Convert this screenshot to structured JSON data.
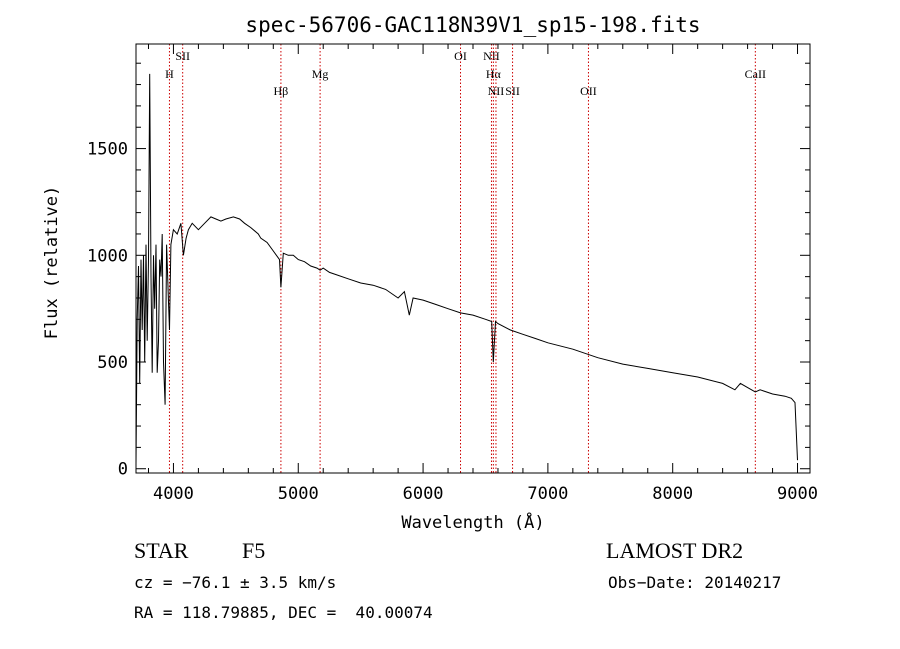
{
  "chart_data": {
    "type": "line",
    "title": "spec-56706-GAC118N39V1_sp15-198.fits",
    "xlabel": "Wavelength (Å)",
    "ylabel": "Flux (relative)",
    "xlim": [
      3700,
      9100
    ],
    "ylim": [
      -20,
      1990
    ],
    "x_ticks": [
      4000,
      5000,
      6000,
      7000,
      8000,
      9000
    ],
    "y_ticks": [
      0,
      500,
      1000,
      1500
    ],
    "grid": false,
    "line_color": "#000000",
    "line_marker_color": "#cc0000",
    "series": [
      {
        "x": [
          3700,
          3710,
          3720,
          3730,
          3740,
          3750,
          3760,
          3770,
          3780,
          3790,
          3800,
          3810,
          3820,
          3830,
          3840,
          3850,
          3860,
          3870,
          3880,
          3890,
          3900,
          3910,
          3920,
          3933,
          3945,
          3960,
          3968,
          3980,
          4000,
          4030,
          4060,
          4080,
          4101,
          4120,
          4150,
          4200,
          4250,
          4300,
          4340,
          4380,
          4420,
          4480,
          4530,
          4570,
          4620,
          4680,
          4700,
          4750,
          4800,
          4850,
          4861,
          4880,
          4920,
          4960,
          5000,
          5050,
          5100,
          5150,
          5175,
          5200,
          5250,
          5300,
          5400,
          5500,
          5600,
          5700,
          5800,
          5850,
          5890,
          5920,
          6000,
          6100,
          6200,
          6300,
          6400,
          6500,
          6550,
          6563,
          6580,
          6600,
          6700,
          6800,
          6900,
          7000,
          7200,
          7400,
          7600,
          7800,
          8000,
          8200,
          8400,
          8498,
          8542,
          8600,
          8662,
          8700,
          8800,
          8900,
          8950,
          8980,
          9000
        ],
        "y": [
          20,
          700,
          950,
          400,
          980,
          650,
          1000,
          500,
          1050,
          600,
          980,
          1850,
          900,
          450,
          1000,
          750,
          1050,
          450,
          600,
          980,
          900,
          1100,
          500,
          300,
          1050,
          780,
          650,
          1050,
          1120,
          1100,
          1150,
          1000,
          1080,
          1120,
          1150,
          1120,
          1150,
          1180,
          1170,
          1160,
          1170,
          1180,
          1170,
          1150,
          1130,
          1100,
          1080,
          1060,
          1020,
          980,
          850,
          1010,
          1000,
          1000,
          980,
          970,
          950,
          940,
          930,
          940,
          920,
          910,
          890,
          870,
          860,
          840,
          800,
          830,
          720,
          800,
          790,
          770,
          750,
          730,
          720,
          700,
          690,
          500,
          690,
          680,
          650,
          630,
          610,
          590,
          560,
          520,
          490,
          470,
          450,
          430,
          400,
          370,
          400,
          380,
          360,
          370,
          350,
          340,
          330,
          310,
          40
        ]
      }
    ],
    "lines": [
      {
        "label": "H",
        "x": 3968
      },
      {
        "label": "SII",
        "x": 4074
      },
      {
        "label": "Hβ",
        "x": 4861
      },
      {
        "label": "Mg",
        "x": 5175
      },
      {
        "label": "OI",
        "x": 6300
      },
      {
        "label": "NII",
        "x": 6548
      },
      {
        "label": "Hα",
        "x": 6563
      },
      {
        "label": "NII",
        "x": 6584
      },
      {
        "label": "SII",
        "x": 6717
      },
      {
        "label": "OII",
        "x": 7325
      },
      {
        "label": "CaII",
        "x": 8662
      }
    ]
  },
  "footer": {
    "object_class": "STAR",
    "subclass": "F5",
    "survey": "LAMOST DR2",
    "cz": "cz = −76.1 ± 3.5 km/s",
    "obs_date": "Obs−Date: 20140217",
    "radec": "RA = 118.79885, DEC =  40.00074"
  }
}
